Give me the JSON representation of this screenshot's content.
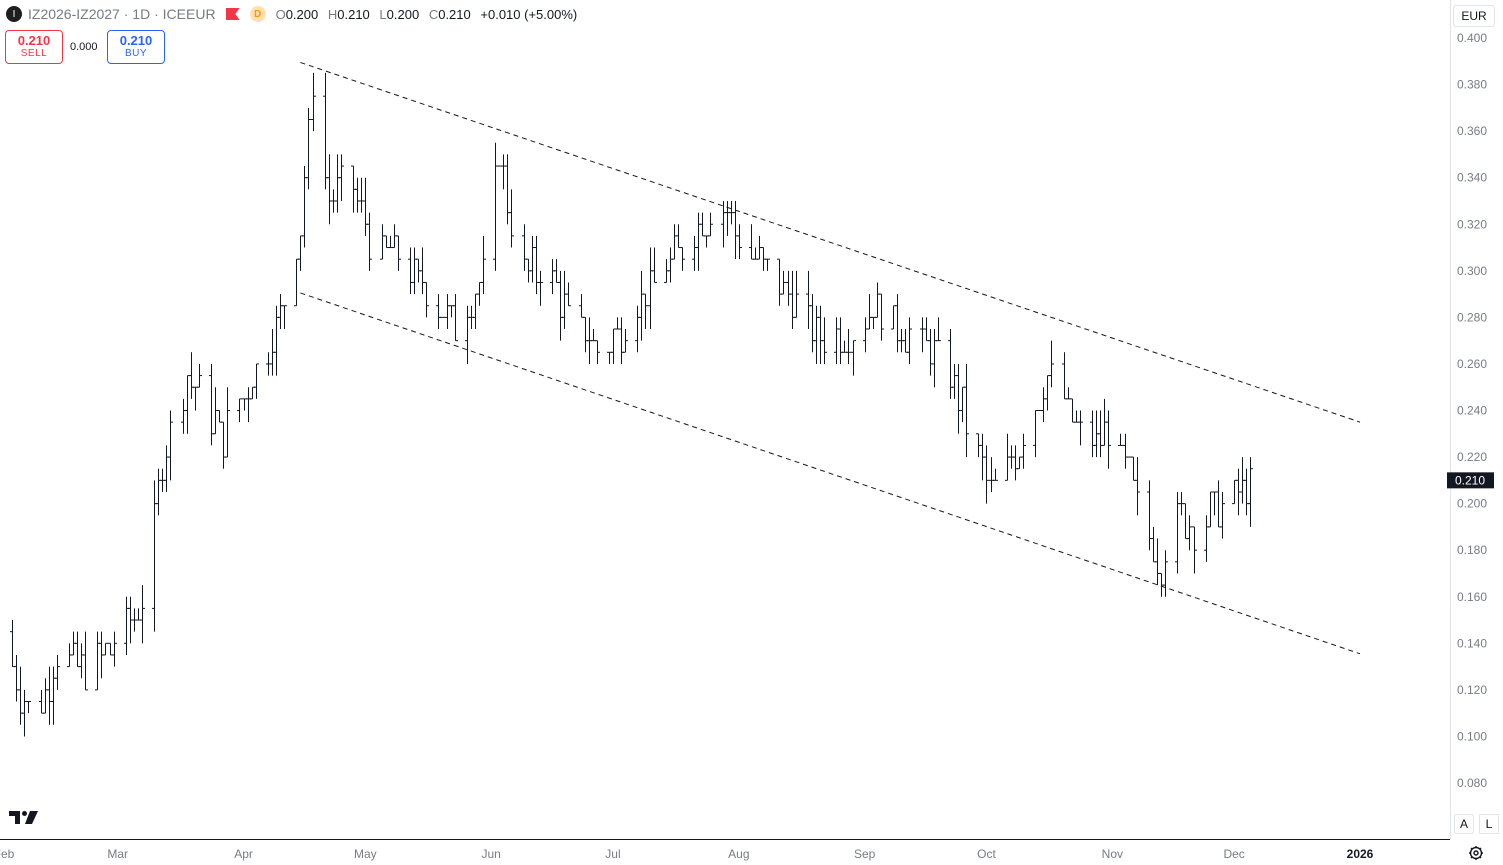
{
  "header": {
    "symbol_icon": "I",
    "symbol": "IZ2026-IZ2027",
    "interval": "1D",
    "exchange": "ICEEUR",
    "badge": "D",
    "open_label": "O",
    "open": "0.200",
    "high_label": "H",
    "high": "0.210",
    "low_label": "L",
    "low": "0.200",
    "close_label": "C",
    "close": "0.210",
    "change": "+0.010 (+5.00%)"
  },
  "trade": {
    "sell_price": "0.210",
    "sell_label": "SELL",
    "spread": "0.000",
    "buy_price": "0.210",
    "buy_label": "BUY"
  },
  "currency": "EUR",
  "scale_buttons": {
    "auto": "A",
    "log": "L"
  },
  "colors": {
    "bar": "#131722",
    "sell": "#f23645",
    "buy": "#2962ff",
    "axis_text": "#787b86"
  },
  "chart_data": {
    "type": "ohlc",
    "ylim": [
      0.07,
      0.4085
    ],
    "y_ticks": [
      "0.400",
      "0.380",
      "0.360",
      "0.340",
      "0.320",
      "0.300",
      "0.280",
      "0.260",
      "0.240",
      "0.220",
      "0.200",
      "0.180",
      "0.160",
      "0.140",
      "0.120",
      "0.100",
      "0.080"
    ],
    "x_ticks": [
      "Feb",
      "Mar",
      "Apr",
      "May",
      "Jun",
      "Jul",
      "Aug",
      "Sep",
      "Oct",
      "Nov",
      "Dec",
      "2026"
    ],
    "x_tick_dates": [
      "2025-02-01",
      "2025-03-01",
      "2025-04-01",
      "2025-05-01",
      "2025-06-01",
      "2025-07-01",
      "2025-08-01",
      "2025-09-01",
      "2025-10-01",
      "2025-11-01",
      "2025-12-01",
      "2026-01-01"
    ],
    "last_price": "0.210",
    "anchors": [
      [
        "2025-02-01",
        0.145
      ],
      [
        "2025-02-05",
        0.12
      ],
      [
        "2025-02-08",
        0.105
      ],
      [
        "2025-02-14",
        0.135
      ],
      [
        "2025-02-22",
        0.128
      ],
      [
        "2025-03-03",
        0.145
      ],
      [
        "2025-03-08",
        0.165
      ],
      [
        "2025-03-12",
        0.22
      ],
      [
        "2025-03-18",
        0.255
      ],
      [
        "2025-03-22",
        0.245
      ],
      [
        "2025-03-27",
        0.228
      ],
      [
        "2025-04-03",
        0.255
      ],
      [
        "2025-04-10",
        0.28
      ],
      [
        "2025-04-15",
        0.32
      ],
      [
        "2025-04-18",
        0.38
      ],
      [
        "2025-04-22",
        0.33
      ],
      [
        "2025-04-27",
        0.34
      ],
      [
        "2025-05-03",
        0.31
      ],
      [
        "2025-05-10",
        0.305
      ],
      [
        "2025-05-17",
        0.29
      ],
      [
        "2025-05-23",
        0.275
      ],
      [
        "2025-05-30",
        0.3
      ],
      [
        "2025-06-03",
        0.35
      ],
      [
        "2025-06-08",
        0.3
      ],
      [
        "2025-06-15",
        0.3
      ],
      [
        "2025-06-20",
        0.28
      ],
      [
        "2025-06-28",
        0.265
      ],
      [
        "2025-07-05",
        0.28
      ],
      [
        "2025-07-13",
        0.3
      ],
      [
        "2025-07-20",
        0.315
      ],
      [
        "2025-07-27",
        0.33
      ],
      [
        "2025-08-02",
        0.31
      ],
      [
        "2025-08-09",
        0.3
      ],
      [
        "2025-08-15",
        0.285
      ],
      [
        "2025-08-22",
        0.27
      ],
      [
        "2025-08-29",
        0.275
      ],
      [
        "2025-09-03",
        0.285
      ],
      [
        "2025-09-10",
        0.275
      ],
      [
        "2025-09-17",
        0.265
      ],
      [
        "2025-09-22",
        0.255
      ],
      [
        "2025-09-27",
        0.23
      ],
      [
        "2025-10-02",
        0.205
      ],
      [
        "2025-10-06",
        0.215
      ],
      [
        "2025-10-10",
        0.23
      ],
      [
        "2025-10-15",
        0.25
      ],
      [
        "2025-10-17",
        0.255
      ],
      [
        "2025-10-22",
        0.235
      ],
      [
        "2025-10-26",
        0.225
      ],
      [
        "2025-10-31",
        0.23
      ],
      [
        "2025-11-04",
        0.215
      ],
      [
        "2025-11-08",
        0.195
      ],
      [
        "2025-11-13",
        0.175
      ],
      [
        "2025-11-17",
        0.195
      ],
      [
        "2025-11-22",
        0.19
      ],
      [
        "2025-11-27",
        0.2
      ],
      [
        "2025-12-02",
        0.205
      ],
      [
        "2025-12-07",
        0.21
      ]
    ],
    "trendlines": [
      {
        "style": "dashed",
        "from": [
          "2025-04-15",
          0.3895
        ],
        "to": [
          "2026-01-01",
          0.235
        ]
      },
      {
        "style": "dashed",
        "from": [
          "2025-04-15",
          0.2905
        ],
        "to": [
          "2026-01-01",
          0.1355
        ]
      }
    ]
  }
}
